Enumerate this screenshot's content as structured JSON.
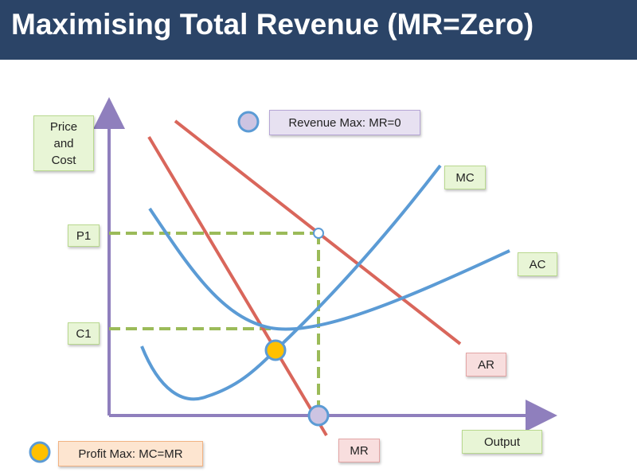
{
  "header": {
    "title": "Maximising Total Revenue (MR=Zero)"
  },
  "axes": {
    "y_label": [
      "Price",
      "and",
      "Cost"
    ],
    "x_label": "Output"
  },
  "levels": {
    "p1": "P1",
    "c1": "C1"
  },
  "curves": {
    "mc": "MC",
    "ac": "AC",
    "ar": "AR",
    "mr": "MR"
  },
  "legend": {
    "revenue_max": "Revenue Max: MR=0",
    "profit_max": "Profit Max: MC=MR"
  }
}
